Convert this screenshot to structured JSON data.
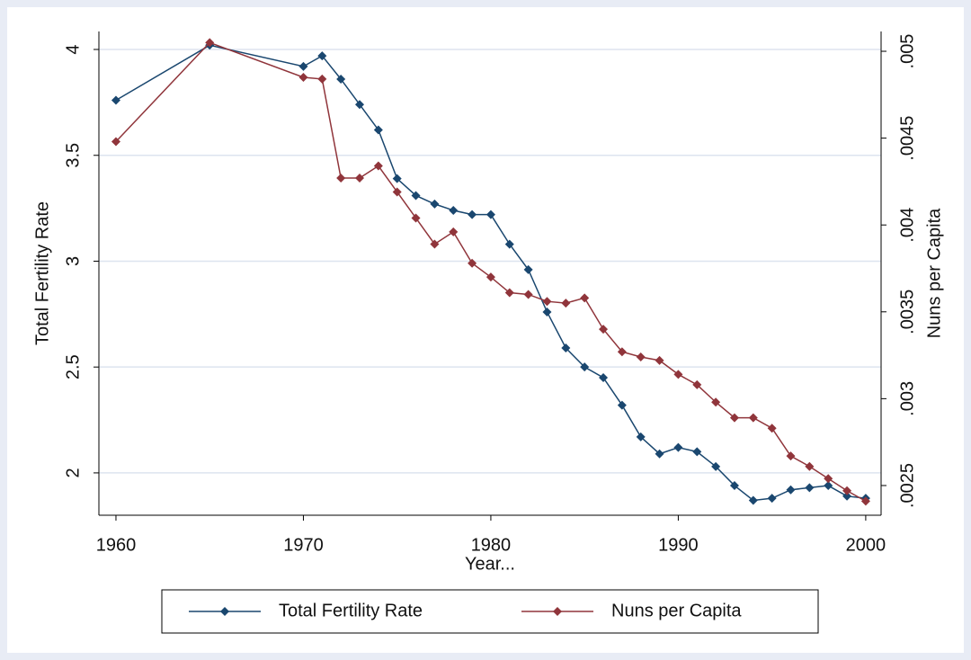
{
  "chart_data": {
    "type": "line",
    "x_label": "Year...",
    "y_label": "Total Fertility Rate",
    "y2_label": "Nuns per Capita",
    "x": [
      1960,
      1965,
      1970,
      1971,
      1972,
      1973,
      1974,
      1975,
      1976,
      1977,
      1978,
      1979,
      1980,
      1981,
      1982,
      1983,
      1984,
      1985,
      1986,
      1987,
      1988,
      1989,
      1990,
      1991,
      1992,
      1993,
      1994,
      1995,
      1996,
      1997,
      1998,
      1999,
      2000
    ],
    "series": [
      {
        "name": "Total Fertility Rate",
        "color": "#1a476f",
        "axis": "y",
        "values": [
          3.76,
          4.02,
          3.92,
          3.97,
          3.86,
          3.74,
          3.62,
          3.39,
          3.31,
          3.27,
          3.24,
          3.22,
          3.22,
          3.08,
          2.96,
          2.76,
          2.59,
          2.5,
          2.45,
          2.32,
          2.17,
          2.09,
          2.12,
          2.1,
          2.03,
          1.94,
          1.87,
          1.88,
          1.92,
          1.93,
          1.94,
          1.89,
          1.88
        ]
      },
      {
        "name": "Nuns per Capita",
        "color": "#90353b",
        "axis": "y2",
        "values": [
          0.00448,
          0.00505,
          0.00485,
          0.00484,
          0.00427,
          0.00427,
          0.00434,
          0.00419,
          0.00404,
          0.00389,
          0.00396,
          0.00378,
          0.0037,
          0.00361,
          0.0036,
          0.00356,
          0.00355,
          0.00358,
          0.0034,
          0.00327,
          0.00324,
          0.00322,
          0.00314,
          0.00308,
          0.00298,
          0.00289,
          0.00289,
          0.00283,
          0.00267,
          0.00261,
          0.00254,
          0.00247,
          0.00241
        ]
      }
    ],
    "xlim": [
      1959.09,
      2000.82
    ],
    "xticks": [
      1960,
      1970,
      1980,
      1990,
      2000
    ],
    "ylim": [
      1.8,
      4.085
    ],
    "yticks": [
      2,
      2.5,
      3,
      3.5,
      4
    ],
    "y2lim": [
      0.002329,
      0.005114
    ],
    "y2ticks": [
      {
        "value": 0.0025,
        "label": ".0025"
      },
      {
        "value": 0.003,
        "label": ".003"
      },
      {
        "value": 0.0035,
        "label": ".0035"
      },
      {
        "value": 0.004,
        "label": ".004"
      },
      {
        "value": 0.0045,
        "label": ".0045"
      },
      {
        "value": 0.005,
        "label": ".005"
      }
    ],
    "grid": true,
    "legend": "bottom"
  }
}
